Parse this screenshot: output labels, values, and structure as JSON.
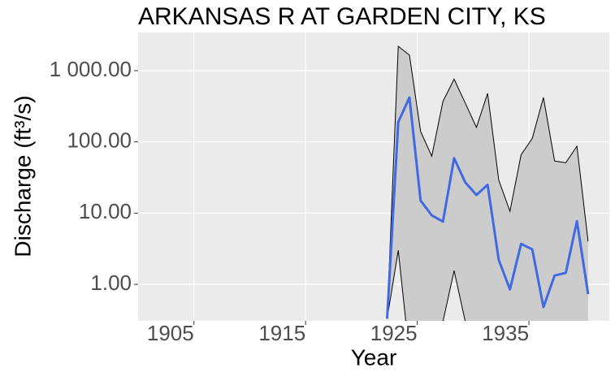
{
  "chart_data": {
    "type": "line",
    "title": "ARKANSAS R AT GARDEN CITY, KS",
    "x_label": "Year",
    "y_label": "Discharge (ft³/s)",
    "x": [
      1922.3,
      1923.3,
      1924.3,
      1925.3,
      1926.3,
      1927.3,
      1928.3,
      1929.3,
      1930.3,
      1931.3,
      1932.3,
      1933.3,
      1934.3,
      1935.3,
      1936.3,
      1937.3,
      1938.3,
      1939.3,
      1940.3
    ],
    "line": {
      "color": "#4169e1",
      "values": [
        0.33,
        190,
        420,
        15,
        9.3,
        7.6,
        59,
        27,
        18,
        25,
        2.2,
        0.85,
        3.7,
        3.1,
        0.48,
        1.33,
        1.45,
        7.7,
        0.73
      ]
    },
    "ribbon": {
      "fill": "#cccccc",
      "stroke": "#000000",
      "lower": [
        0.33,
        3.0,
        0.1,
        0.1,
        0.1,
        0.3,
        1.56,
        0.3,
        0.2,
        0.2,
        0.2,
        0.2,
        0.2,
        0.2,
        0.2,
        0.2,
        0.2,
        0.2,
        0.2
      ],
      "upper": [
        0.33,
        2200,
        1650,
        140,
        63,
        370,
        760,
        350,
        160,
        480,
        29,
        10.6,
        66,
        112,
        420,
        54,
        51,
        87,
        4.0
      ]
    },
    "xlim": [
      1900,
      1942.2
    ],
    "xticks": [
      1905,
      1915,
      1925,
      1935
    ],
    "ylim": [
      0.307,
      3435
    ],
    "yticks": [
      {
        "value": 1,
        "label": "1.00"
      },
      {
        "value": 10,
        "label": "10.00"
      },
      {
        "value": 100,
        "label": "100.00"
      },
      {
        "value": 1000,
        "label": "1 000.00"
      }
    ],
    "log_y": true,
    "grid": true
  }
}
